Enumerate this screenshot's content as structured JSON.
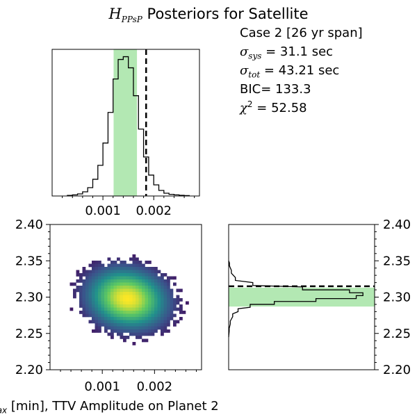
{
  "title": {
    "symbol": "H",
    "subscript": "PPsP",
    "text": " Posteriors for Satellite"
  },
  "stats": {
    "case_label": "Case 2 [26 yr span]",
    "sigma_sys": {
      "symbol": "σ",
      "sub": "sys",
      "value": " = 31.1 sec"
    },
    "sigma_tot": {
      "symbol": "σ",
      "sub": "tot",
      "value": " = 43.21 sec"
    },
    "bic": "BIC= 133.3",
    "chi2": {
      "symbol": "χ",
      "sup": "2",
      "value": " = 52.58"
    }
  },
  "xlabel": {
    "prefix": "max",
    "text": " [min], TTV Amplitude on Planet 2"
  },
  "colors": {
    "shade": "#b3e8b3",
    "line": "#000000",
    "viridis": [
      "#440154",
      "#3b528b",
      "#21918c",
      "#5ec962",
      "#fde725"
    ]
  },
  "chart_data": [
    {
      "type": "histogram",
      "panel": "top",
      "x": [
        0.00035,
        0.00045,
        0.00055,
        0.00065,
        0.00075,
        0.00085,
        0.00095,
        0.00105,
        0.00115,
        0.00125,
        0.00135,
        0.00145,
        0.00155,
        0.00165,
        0.00175,
        0.00185,
        0.00195,
        0.00205,
        0.00215,
        0.00225,
        0.00235,
        0.00245,
        0.00255,
        0.00265
      ],
      "values": [
        0.004,
        0.008,
        0.015,
        0.03,
        0.06,
        0.12,
        0.22,
        0.38,
        0.6,
        0.84,
        0.98,
        1.0,
        0.92,
        0.72,
        0.48,
        0.28,
        0.15,
        0.08,
        0.04,
        0.02,
        0.012,
        0.008,
        0.005,
        0.003
      ],
      "xlim": [
        0.0,
        0.0029
      ],
      "xticks": [
        0.001,
        0.002
      ],
      "xtick_labels": [
        "0.001",
        "0.002"
      ],
      "shaded_interval": [
        0.00121,
        0.00167
      ],
      "dashed_line": 0.00185
    },
    {
      "type": "heatmap",
      "panel": "bottom-left",
      "xlim": [
        0.0,
        0.0029
      ],
      "ylim": [
        2.2,
        2.4
      ],
      "xticks": [
        0.001,
        0.002
      ],
      "xtick_labels": [
        "0.001",
        "0.002"
      ],
      "yticks": [
        2.2,
        2.25,
        2.3,
        2.35,
        2.4
      ],
      "ytick_labels": [
        "2.20",
        "2.25",
        "2.30",
        "2.35",
        "2.40"
      ],
      "peak": [
        0.00145,
        2.3
      ],
      "x_extent": [
        0.0002,
        0.0027
      ],
      "y_extent": [
        2.21,
        2.36
      ]
    },
    {
      "type": "histogram",
      "panel": "right",
      "orientation": "horizontal",
      "ylim": [
        2.2,
        2.4
      ],
      "yticks": [
        2.2,
        2.25,
        2.3,
        2.35,
        2.4
      ],
      "ytick_labels": [
        "2.20",
        "2.25",
        "2.30",
        "2.35",
        "2.40"
      ],
      "y": [
        2.255,
        2.265,
        2.275,
        2.282,
        2.288,
        2.292,
        2.296,
        2.3,
        2.304,
        2.308,
        2.312,
        2.318,
        2.325,
        2.335,
        2.345
      ],
      "values": [
        0.004,
        0.012,
        0.03,
        0.07,
        0.16,
        0.34,
        0.65,
        0.95,
        1.0,
        0.9,
        0.55,
        0.18,
        0.05,
        0.02,
        0.006
      ],
      "shaded_interval": [
        2.287,
        2.313
      ],
      "dashed_line": 2.315
    }
  ]
}
